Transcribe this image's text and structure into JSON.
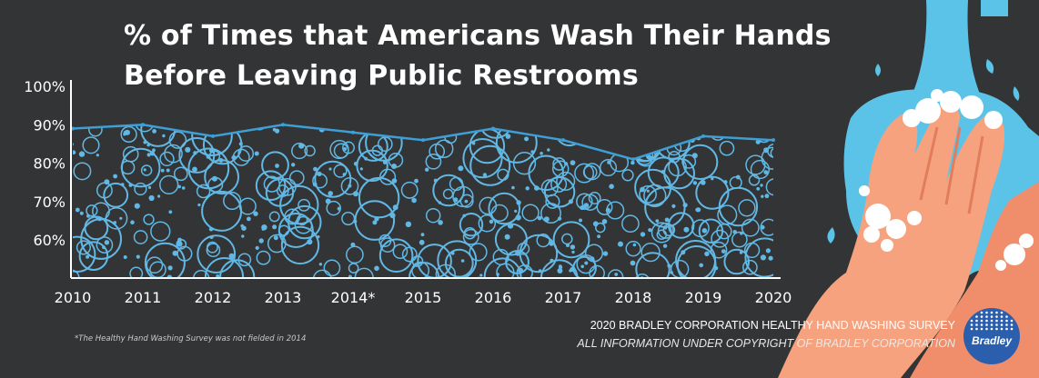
{
  "title": {
    "line1": "% of Times that Americans Wash Their Hands",
    "line2": "Before Leaving Public Restrooms"
  },
  "footnote": "*The Healthy Hand Washing Survey was not fielded in 2014",
  "credit": {
    "line1": "2020 BRADLEY CORPORATION HEALTHY HAND WASHING SURVEY",
    "line2": "ALL INFORMATION UNDER COPYRIGHT OF BRADLEY CORPORATION"
  },
  "logo": {
    "text": "Bradley"
  },
  "colors": {
    "background": "#333435",
    "line": "#3d9fd6",
    "bubble": "#62b8e4",
    "axis": "#ffffff",
    "water": "#5cc3e8",
    "skin": "#f6a27e"
  },
  "chart_data": {
    "type": "area",
    "categories": [
      "2010",
      "2011",
      "2012",
      "2013",
      "2014*",
      "2015",
      "2016",
      "2017",
      "2018",
      "2019",
      "2020"
    ],
    "values": [
      89,
      90,
      87,
      90,
      88,
      86,
      89,
      86,
      81,
      87,
      86
    ],
    "y_ticks": [
      "100%",
      "90%",
      "80%",
      "70%",
      "60%"
    ],
    "y_tick_values": [
      100,
      90,
      80,
      70,
      60
    ],
    "ylim": [
      50,
      100
    ],
    "fill_pattern": "bubbles",
    "grid": false
  }
}
